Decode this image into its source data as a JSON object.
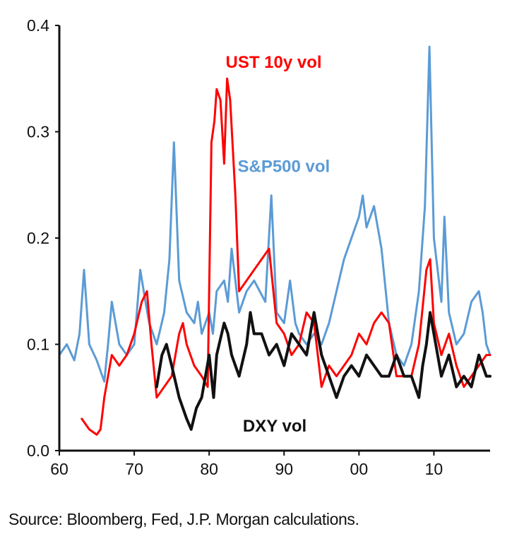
{
  "chart_data": {
    "type": "line",
    "title": "",
    "xlabel": "",
    "ylabel": "",
    "xlim": [
      1960,
      2017.5
    ],
    "ylim": [
      0,
      0.4
    ],
    "grid": false,
    "x_ticks": [
      {
        "value": 1960,
        "label": "60"
      },
      {
        "value": 1970,
        "label": "70"
      },
      {
        "value": 1980,
        "label": "80"
      },
      {
        "value": 1990,
        "label": "90"
      },
      {
        "value": 2000,
        "label": "00"
      },
      {
        "value": 2010,
        "label": "10"
      }
    ],
    "y_ticks": [
      {
        "value": 0.0,
        "label": "0.0"
      },
      {
        "value": 0.1,
        "label": "0.1"
      },
      {
        "value": 0.2,
        "label": "0.2"
      },
      {
        "value": 0.3,
        "label": "0.3"
      },
      {
        "value": 0.4,
        "label": "0.4"
      }
    ],
    "series": [
      {
        "name": "S&P500 vol",
        "color": "#5b9bd5",
        "x": [
          1960,
          1961,
          1962,
          1962.7,
          1963.3,
          1964,
          1965,
          1966,
          1966.5,
          1967,
          1968,
          1969,
          1970,
          1970.8,
          1971.5,
          1972,
          1973,
          1974,
          1974.7,
          1975.3,
          1976,
          1977,
          1978,
          1978.5,
          1979,
          1980,
          1980.5,
          1981,
          1982,
          1982.5,
          1983,
          1984,
          1985,
          1986,
          1987.5,
          1988.3,
          1989,
          1990,
          1990.8,
          1991.5,
          1992,
          1993,
          1994,
          1995,
          1996,
          1997,
          1998,
          1999,
          2000,
          2000.5,
          2001,
          2002,
          2003,
          2004,
          2005,
          2006,
          2007,
          2008,
          2008.8,
          2009.4,
          2010,
          2010.5,
          2011,
          2011.4,
          2012,
          2013,
          2014,
          2015,
          2016,
          2016.5,
          2017,
          2017.5
        ],
        "values": [
          0.09,
          0.1,
          0.085,
          0.11,
          0.17,
          0.1,
          0.085,
          0.065,
          0.1,
          0.14,
          0.1,
          0.09,
          0.1,
          0.17,
          0.14,
          0.12,
          0.1,
          0.13,
          0.18,
          0.29,
          0.16,
          0.13,
          0.12,
          0.14,
          0.11,
          0.13,
          0.11,
          0.15,
          0.16,
          0.14,
          0.19,
          0.13,
          0.15,
          0.16,
          0.14,
          0.24,
          0.13,
          0.12,
          0.16,
          0.12,
          0.11,
          0.1,
          0.11,
          0.1,
          0.12,
          0.15,
          0.18,
          0.2,
          0.22,
          0.24,
          0.21,
          0.23,
          0.19,
          0.12,
          0.09,
          0.08,
          0.1,
          0.15,
          0.23,
          0.38,
          0.2,
          0.17,
          0.14,
          0.22,
          0.13,
          0.1,
          0.11,
          0.14,
          0.15,
          0.13,
          0.1,
          0.09
        ]
      },
      {
        "name": "UST 10y vol",
        "color": "#ff0000",
        "x": [
          1963,
          1964,
          1965,
          1965.5,
          1966,
          1966.5,
          1967,
          1968,
          1969,
          1970,
          1971,
          1971.7,
          1972.3,
          1973,
          1974,
          1975,
          1976,
          1976.5,
          1977,
          1978,
          1979,
          1979.8,
          1980.3,
          1980.7,
          1981,
          1981.5,
          1982,
          1982.4,
          1982.8,
          1983.5,
          1984,
          1985,
          1986,
          1987,
          1988,
          1989,
          1990,
          1991,
          1992,
          1993,
          1994,
          1995,
          1996,
          1997,
          1998,
          1999,
          2000,
          2001,
          2002,
          2003,
          2004,
          2005,
          2006,
          2007,
          2008,
          2009,
          2009.5,
          2010,
          2011,
          2012,
          2013,
          2014,
          2015,
          2016,
          2017,
          2017.5
        ],
        "values": [
          0.03,
          0.02,
          0.015,
          0.02,
          0.05,
          0.07,
          0.09,
          0.08,
          0.09,
          0.11,
          0.14,
          0.15,
          0.1,
          0.05,
          0.06,
          0.07,
          0.11,
          0.12,
          0.1,
          0.08,
          0.07,
          0.06,
          0.29,
          0.31,
          0.34,
          0.33,
          0.27,
          0.35,
          0.33,
          0.24,
          0.15,
          0.16,
          0.17,
          0.18,
          0.19,
          0.12,
          0.11,
          0.09,
          0.1,
          0.13,
          0.12,
          0.06,
          0.08,
          0.07,
          0.08,
          0.09,
          0.11,
          0.1,
          0.12,
          0.13,
          0.12,
          0.07,
          0.07,
          0.07,
          0.1,
          0.17,
          0.18,
          0.12,
          0.09,
          0.11,
          0.08,
          0.06,
          0.07,
          0.08,
          0.09,
          0.09
        ]
      },
      {
        "name": "DXY vol",
        "color": "#111111",
        "x": [
          1973,
          1973.7,
          1974.3,
          1975,
          1976,
          1977,
          1977.6,
          1978.3,
          1979,
          1980,
          1980.6,
          1981,
          1982,
          1982.5,
          1983,
          1984,
          1985,
          1985.5,
          1986,
          1987,
          1988,
          1989,
          1990,
          1991,
          1992,
          1993,
          1994,
          1995,
          1996,
          1997,
          1998,
          1999,
          2000,
          2001,
          2002,
          2003,
          2004,
          2005,
          2006,
          2007,
          2008,
          2008.5,
          2009,
          2009.5,
          2010,
          2011,
          2012,
          2013,
          2014,
          2015,
          2016,
          2016.5,
          2017,
          2017.5
        ],
        "values": [
          0.06,
          0.09,
          0.1,
          0.08,
          0.05,
          0.03,
          0.02,
          0.04,
          0.05,
          0.09,
          0.05,
          0.09,
          0.12,
          0.11,
          0.09,
          0.07,
          0.1,
          0.13,
          0.11,
          0.11,
          0.09,
          0.1,
          0.08,
          0.11,
          0.1,
          0.09,
          0.13,
          0.09,
          0.07,
          0.05,
          0.07,
          0.08,
          0.07,
          0.09,
          0.08,
          0.07,
          0.07,
          0.09,
          0.07,
          0.07,
          0.05,
          0.08,
          0.1,
          0.13,
          0.11,
          0.07,
          0.09,
          0.06,
          0.07,
          0.06,
          0.09,
          0.08,
          0.07,
          0.07
        ]
      }
    ],
    "annotations": [
      {
        "series": "UST 10y vol",
        "text": "UST 10y vol",
        "color": "#ff0000",
        "x": 1982.2,
        "y": 0.36
      },
      {
        "series": "S&P500 vol",
        "text": "S&P500 vol",
        "color": "#5b9bd5",
        "x": 1983.8,
        "y": 0.262
      },
      {
        "series": "DXY vol",
        "text": "DXY vol",
        "color": "#111111",
        "x": 1984.5,
        "y": 0.018
      }
    ]
  },
  "source": "Source: Bloomberg, Fed, J.P. Morgan calculations."
}
